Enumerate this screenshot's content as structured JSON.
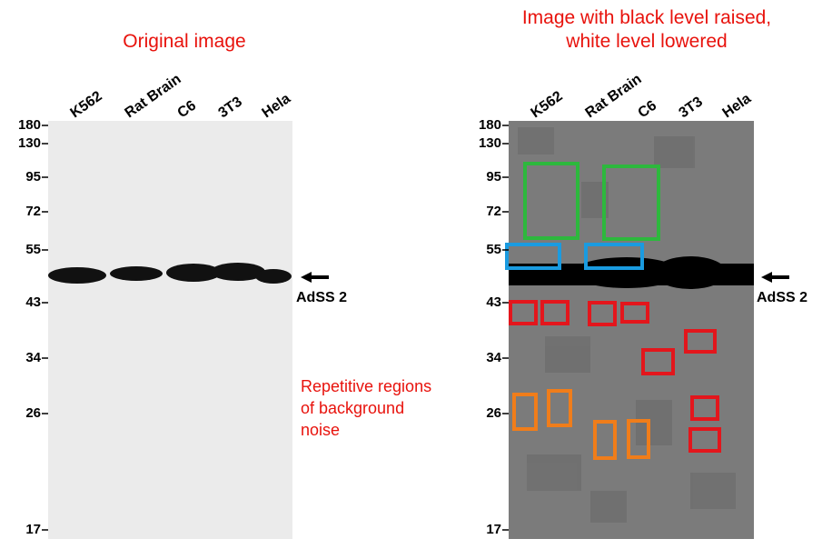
{
  "left_panel": {
    "title": "Original image",
    "lanes": [
      "K562",
      "Rat Brain",
      "C6",
      "3T3",
      "Hela"
    ],
    "markers": [
      "180",
      "130",
      "95",
      "72",
      "55",
      "43",
      "34",
      "26",
      "17"
    ],
    "band_label": "AdSS 2"
  },
  "right_panel": {
    "title": [
      "Image with black level raised,",
      "white level lowered"
    ],
    "lanes": [
      "K562",
      "Rat Brain",
      "C6",
      "3T3",
      "Hela"
    ],
    "markers": [
      "180",
      "130",
      "95",
      "72",
      "55",
      "43",
      "34",
      "26",
      "17"
    ],
    "band_label": "AdSS 2"
  },
  "annotation": [
    "Repetitive regions",
    "of background",
    "noise"
  ]
}
